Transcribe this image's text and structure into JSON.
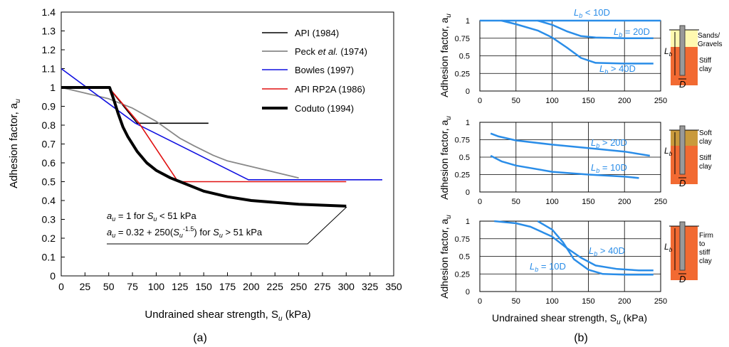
{
  "chart_data": [
    {
      "type": "line",
      "panel_label": "(a)",
      "xlabel": "Undrained shear strength, S",
      "xlabel_sub": "u",
      "xlabel_unit": " (kPa)",
      "ylabel": "Adhesion factor, a",
      "ylabel_sub": "u",
      "xlim": [
        0,
        350
      ],
      "ylim": [
        0,
        1.4
      ],
      "xticks": [
        "0",
        "25",
        "50",
        "75",
        "100",
        "125",
        "150",
        "175",
        "200",
        "225",
        "250",
        "275",
        "300",
        "325",
        "350"
      ],
      "yticks": [
        "0",
        "0.1",
        "0.2",
        "0.3",
        "0.4",
        "0.5",
        "0.6",
        "0.7",
        "0.8",
        "0.9",
        "1",
        "1.1",
        "1.2",
        "1.3",
        "1.4"
      ],
      "series": [
        {
          "name": "API (1984)",
          "color": "#000000",
          "width": 1.6,
          "points": [
            [
              0,
              1
            ],
            [
              50,
              1
            ],
            [
              80,
              0.81
            ],
            [
              155,
              0.81
            ]
          ]
        },
        {
          "name": "Peck et al. (1974)",
          "name_pre": "Peck ",
          "name_it": "et al.",
          "name_post": " (1974)",
          "color": "#888888",
          "width": 1.8,
          "points": [
            [
              0,
              1
            ],
            [
              25,
              0.97
            ],
            [
              50,
              0.94
            ],
            [
              75,
              0.89
            ],
            [
              100,
              0.82
            ],
            [
              125,
              0.73
            ],
            [
              140,
              0.69
            ],
            [
              160,
              0.64
            ],
            [
              175,
              0.61
            ],
            [
              200,
              0.58
            ],
            [
              225,
              0.55
            ],
            [
              250,
              0.52
            ]
          ]
        },
        {
          "name": "Bowles (1997)",
          "color": "#1010e0",
          "width": 1.6,
          "points": [
            [
              0,
              1.1
            ],
            [
              78,
              0.81
            ],
            [
              197,
              0.51
            ],
            [
              338,
              0.51
            ]
          ]
        },
        {
          "name": "API RP2A (1986)",
          "color": "#e01010",
          "width": 1.6,
          "points": [
            [
              0,
              1
            ],
            [
              50,
              1
            ],
            [
              82,
              0.81
            ],
            [
              123,
              0.5
            ],
            [
              300,
              0.5
            ]
          ]
        },
        {
          "name": "Coduto (1994)",
          "color": "#000000",
          "width": 4,
          "points": [
            [
              0,
              1
            ],
            [
              51,
              1
            ],
            [
              55,
              0.94
            ],
            [
              60,
              0.86
            ],
            [
              65,
              0.79
            ],
            [
              70,
              0.74
            ],
            [
              80,
              0.66
            ],
            [
              90,
              0.6
            ],
            [
              100,
              0.56
            ],
            [
              115,
              0.52
            ],
            [
              130,
              0.49
            ],
            [
              150,
              0.45
            ],
            [
              175,
              0.42
            ],
            [
              200,
              0.4
            ],
            [
              250,
              0.38
            ],
            [
              300,
              0.37
            ]
          ]
        }
      ],
      "annotation": {
        "line1_a": "a",
        "line1_a_sub": "u",
        "line1_mid": " = 1 for ",
        "line1_s": "S",
        "line1_s_sub": "u",
        "line1_end": " < 51 kPa",
        "line2_a": "a",
        "line2_a_sub": "u",
        "line2_mid": " = 0.32 + 250(",
        "line2_s": "S",
        "line2_s_sub": "u",
        "line2_exp": "-1.5",
        "line2_mid2": ") for ",
        "line2_s2": "S",
        "line2_s2_sub": "u",
        "line2_end": " > 51 kPa"
      }
    },
    {
      "type": "line",
      "panel_label": "(b)",
      "xlabel": "Undrained shear strength, S",
      "xlabel_sub": "u",
      "xlabel_unit": " (kPa)",
      "ylabel": "Adhesion factor, a",
      "ylabel_sub": "u",
      "xlim": [
        0,
        250
      ],
      "ylim": [
        0,
        1
      ],
      "xticks": [
        "0",
        "50",
        "100",
        "150",
        "200",
        "250"
      ],
      "yticks": [
        "0",
        "0.25",
        "0.5",
        "0.75",
        "1"
      ],
      "color": "#2a8de8",
      "subplots": [
        {
          "series": [
            {
              "name": "Lb < 10D",
              "label_pre": "L",
              "label_sub": "b",
              "label_post": " < 10D",
              "points": [
                [
                  0,
                  1
                ],
                [
                  250,
                  1
                ]
              ]
            },
            {
              "name": "Lb = 20D",
              "label_pre": "L",
              "label_sub": "b",
              "label_post": " = 20D",
              "points": [
                [
                  80,
                  1
                ],
                [
                  100,
                  0.94
                ],
                [
                  120,
                  0.85
                ],
                [
                  140,
                  0.78
                ],
                [
                  160,
                  0.76
                ],
                [
                  200,
                  0.75
                ],
                [
                  240,
                  0.75
                ]
              ]
            },
            {
              "name": "Lb > 40D",
              "label_pre": "L",
              "label_sub": "b",
              "label_post": " > 40D",
              "points": [
                [
                  30,
                  1
                ],
                [
                  50,
                  0.95
                ],
                [
                  80,
                  0.86
                ],
                [
                  100,
                  0.76
                ],
                [
                  120,
                  0.62
                ],
                [
                  140,
                  0.47
                ],
                [
                  160,
                  0.4
                ],
                [
                  200,
                  0.39
                ],
                [
                  240,
                  0.39
                ]
              ]
            }
          ],
          "inset": {
            "layers": [
              "Sands/",
              "Gravels",
              "Stiff",
              "clay"
            ],
            "lb": "L",
            "lb_sub": "b",
            "d": "D"
          }
        },
        {
          "series": [
            {
              "name": "Lb > 20D",
              "label_pre": "L",
              "label_sub": "b",
              "label_post": " > 20D",
              "points": [
                [
                  15,
                  0.84
                ],
                [
                  25,
                  0.8
                ],
                [
                  50,
                  0.74
                ],
                [
                  100,
                  0.68
                ],
                [
                  150,
                  0.63
                ],
                [
                  200,
                  0.58
                ],
                [
                  235,
                  0.52
                ]
              ]
            },
            {
              "name": "Lb = 10D",
              "label_pre": "L",
              "label_sub": "b",
              "label_post": " = 10D",
              "points": [
                [
                  15,
                  0.52
                ],
                [
                  30,
                  0.44
                ],
                [
                  50,
                  0.38
                ],
                [
                  100,
                  0.29
                ],
                [
                  150,
                  0.25
                ],
                [
                  200,
                  0.22
                ],
                [
                  220,
                  0.2
                ]
              ]
            }
          ],
          "inset": {
            "layers": [
              "Soft",
              "clay",
              "Stiff",
              "clay"
            ],
            "lb": "L",
            "lb_sub": "b",
            "d": "D"
          }
        },
        {
          "series": [
            {
              "name": "Lb > 40D",
              "label_pre": "L",
              "label_sub": "b",
              "label_post": " > 40D",
              "points": [
                [
                  20,
                  1
                ],
                [
                  50,
                  0.97
                ],
                [
                  70,
                  0.92
                ],
                [
                  100,
                  0.78
                ],
                [
                  120,
                  0.62
                ],
                [
                  140,
                  0.48
                ],
                [
                  160,
                  0.37
                ],
                [
                  190,
                  0.32
                ],
                [
                  220,
                  0.3
                ],
                [
                  240,
                  0.3
                ]
              ]
            },
            {
              "name": "Lb = 10D",
              "label_pre": "L",
              "label_sub": "b",
              "label_post": " = 10D",
              "points": [
                [
                  80,
                  1
                ],
                [
                  100,
                  0.88
                ],
                [
                  115,
                  0.7
                ],
                [
                  130,
                  0.46
                ],
                [
                  150,
                  0.31
                ],
                [
                  170,
                  0.25
                ],
                [
                  200,
                  0.24
                ],
                [
                  240,
                  0.24
                ]
              ]
            }
          ],
          "inset": {
            "layers": [
              "Firm",
              "to",
              "stiff",
              "clay"
            ],
            "lb": "L",
            "lb_sub": "b",
            "d": "D"
          }
        }
      ]
    }
  ]
}
